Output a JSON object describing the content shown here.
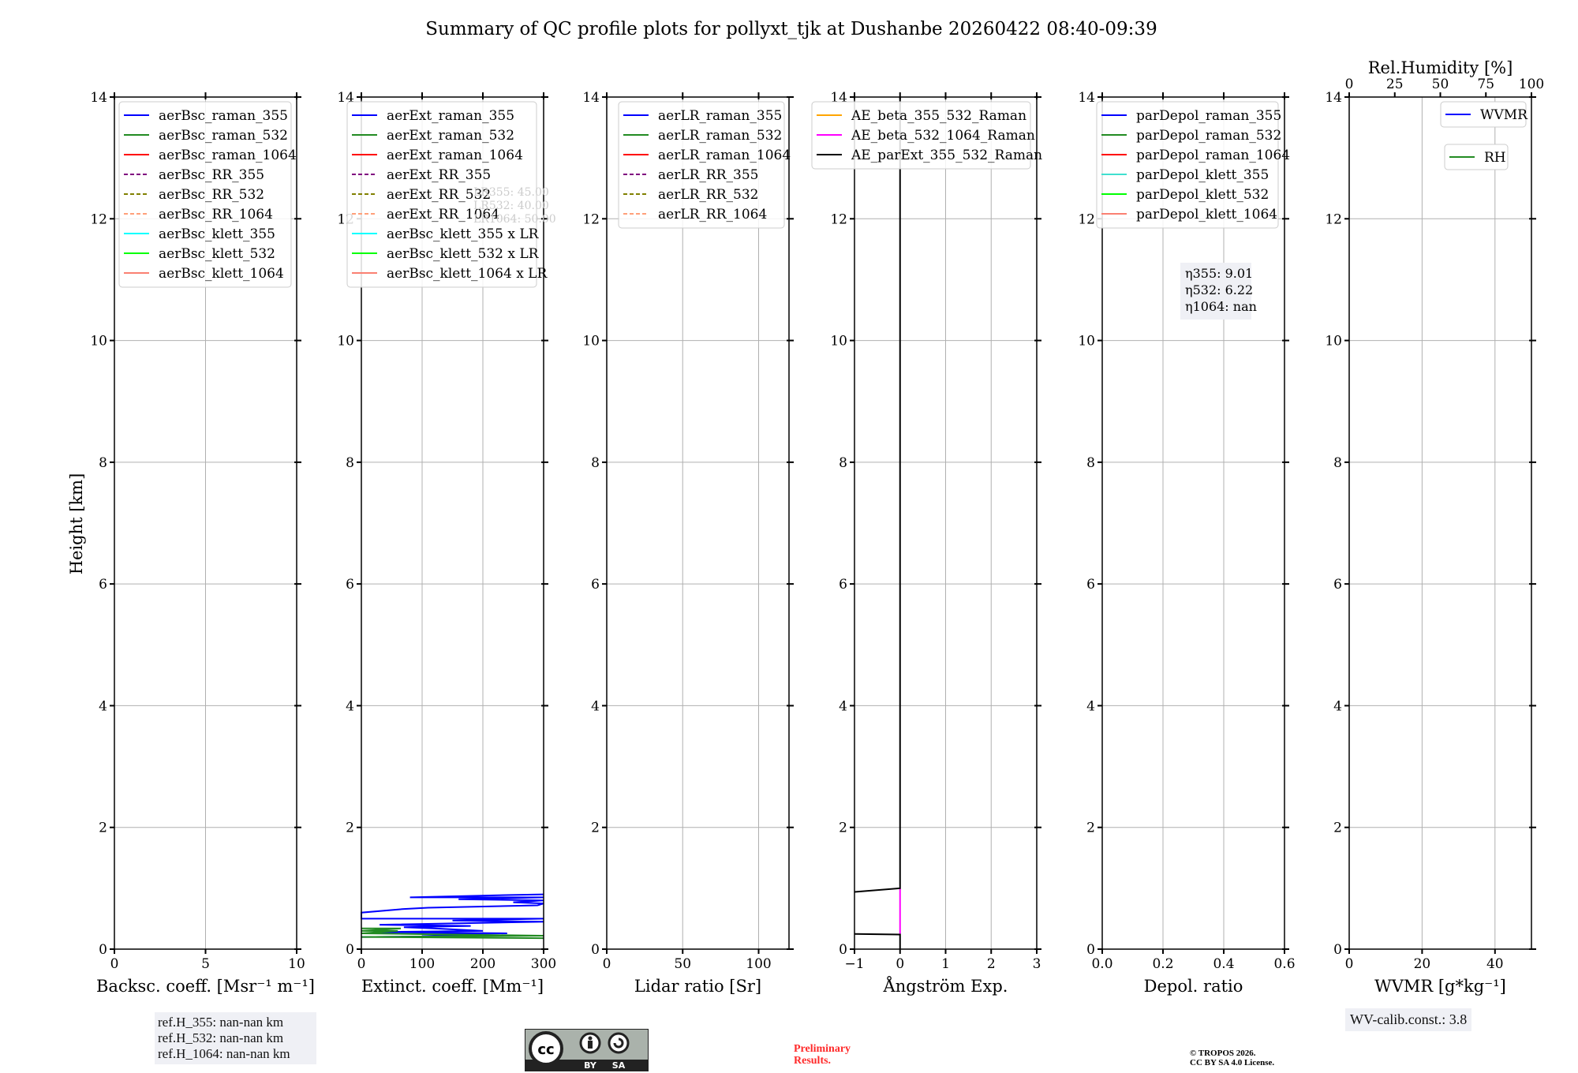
{
  "title": "Summary of QC profile plots for pollyxt_tjk at Dushanbe 20260422 08:40-09:39",
  "ylabel": "Height [km]",
  "chart_data": [
    {
      "type": "line",
      "name": "backscatter",
      "xlabel": "Backsc. coeff. [Msr⁻¹ m⁻¹]",
      "xlim": [
        0,
        10
      ],
      "xticks": [
        0,
        5,
        10
      ],
      "xtick_labels": [
        "0",
        "5",
        "10"
      ],
      "ylim": [
        0,
        14
      ],
      "yticks": [
        0,
        2,
        4,
        6,
        8,
        10,
        12,
        14
      ],
      "grid": true,
      "legend_position": "top-left",
      "legend": [
        {
          "label": "aerBsc_raman_355",
          "color": "#0000ff",
          "dash": false
        },
        {
          "label": "aerBsc_raman_532",
          "color": "#228b22",
          "dash": false
        },
        {
          "label": "aerBsc_raman_1064",
          "color": "#ff0000",
          "dash": false
        },
        {
          "label": "aerBsc_RR_355",
          "color": "#800080",
          "dash": true
        },
        {
          "label": "aerBsc_RR_532",
          "color": "#808000",
          "dash": true
        },
        {
          "label": "aerBsc_RR_1064",
          "color": "#ffa07a",
          "dash": true
        },
        {
          "label": "aerBsc_klett_355",
          "color": "#00ffff",
          "dash": false
        },
        {
          "label": "aerBsc_klett_532",
          "color": "#00ff00",
          "dash": false
        },
        {
          "label": "aerBsc_klett_1064",
          "color": "#fa8072",
          "dash": false
        }
      ],
      "series": []
    },
    {
      "type": "line",
      "name": "extinction",
      "xlabel": "Extinct. coeff. [Mm⁻¹]",
      "xlim": [
        0,
        300
      ],
      "xticks": [
        0,
        100,
        200,
        300
      ],
      "xtick_labels": [
        "0",
        "100",
        "200",
        "300"
      ],
      "ylim": [
        0,
        14
      ],
      "yticks": [
        0,
        2,
        4,
        6,
        8,
        10,
        12,
        14
      ],
      "grid": true,
      "legend_position": "top-left",
      "legend": [
        {
          "label": "aerExt_raman_355",
          "color": "#0000ff",
          "dash": false
        },
        {
          "label": "aerExt_raman_532",
          "color": "#228b22",
          "dash": false
        },
        {
          "label": "aerExt_raman_1064",
          "color": "#ff0000",
          "dash": false
        },
        {
          "label": "aerExt_RR_355",
          "color": "#800080",
          "dash": true
        },
        {
          "label": "aerExt_RR_532",
          "color": "#808000",
          "dash": true
        },
        {
          "label": "aerExt_RR_1064",
          "color": "#ffa07a",
          "dash": true
        },
        {
          "label": "aerBsc_klett_355 x LR",
          "color": "#00ffff",
          "dash": false
        },
        {
          "label": "aerBsc_klett_532 x LR",
          "color": "#00ff00",
          "dash": false
        },
        {
          "label": "aerBsc_klett_1064 x LR",
          "color": "#fa8072",
          "dash": false
        }
      ],
      "annotation": [
        "LR355: 45.00",
        "LR532: 40.00",
        "LR1064: 50.00"
      ],
      "series": [
        {
          "name": "aerExt_raman_355",
          "color": "#0000ff",
          "x": [
            300,
            245,
            80,
            300,
            160,
            300,
            250,
            300,
            290,
            110,
            70,
            0,
            0,
            300,
            150,
            300,
            30,
            180,
            70,
            120,
            200,
            20,
            240,
            100,
            190,
            0
          ],
          "y": [
            0.9,
            0.89,
            0.85,
            0.85,
            0.82,
            0.8,
            0.77,
            0.75,
            0.72,
            0.68,
            0.66,
            0.6,
            0.5,
            0.5,
            0.47,
            0.45,
            0.4,
            0.38,
            0.36,
            0.34,
            0.3,
            0.28,
            0.26,
            0.24,
            0.21,
            0.2
          ]
        },
        {
          "name": "aerExt_raman_532",
          "color": "#228b22",
          "x": [
            0,
            65,
            0,
            60,
            0,
            300,
            0,
            300
          ],
          "y": [
            0.34,
            0.34,
            0.3,
            0.3,
            0.26,
            0.22,
            0.2,
            0.18
          ]
        }
      ]
    },
    {
      "type": "line",
      "name": "lidar_ratio",
      "xlabel": "Lidar ratio [Sr]",
      "xlim": [
        0,
        120
      ],
      "xticks": [
        0,
        50,
        100
      ],
      "xtick_labels": [
        "0",
        "50",
        "100"
      ],
      "ylim": [
        0,
        14
      ],
      "yticks": [
        0,
        2,
        4,
        6,
        8,
        10,
        12,
        14
      ],
      "grid": true,
      "legend_position": "top-left",
      "legend": [
        {
          "label": "aerLR_raman_355",
          "color": "#0000ff",
          "dash": false
        },
        {
          "label": "aerLR_raman_532",
          "color": "#228b22",
          "dash": false
        },
        {
          "label": "aerLR_raman_1064",
          "color": "#ff0000",
          "dash": false
        },
        {
          "label": "aerLR_RR_355",
          "color": "#800080",
          "dash": true
        },
        {
          "label": "aerLR_RR_532",
          "color": "#808000",
          "dash": true
        },
        {
          "label": "aerLR_RR_1064",
          "color": "#ffa07a",
          "dash": true
        }
      ],
      "series": []
    },
    {
      "type": "line",
      "name": "angstrom",
      "xlabel": "Ångström Exp.",
      "xlim": [
        -1,
        3
      ],
      "xticks": [
        -1,
        0,
        1,
        2,
        3
      ],
      "xtick_labels": [
        "−1",
        "0",
        "1",
        "2",
        "3"
      ],
      "ylim": [
        0,
        14
      ],
      "yticks": [
        0,
        2,
        4,
        6,
        8,
        10,
        12,
        14
      ],
      "grid": true,
      "legend_position": "top-left",
      "legend": [
        {
          "label": "AE_beta_355_532_Raman",
          "color": "#ffa500",
          "dash": false
        },
        {
          "label": "AE_beta_532_1064_Raman",
          "color": "#ff00ff",
          "dash": false
        },
        {
          "label": "AE_parExt_355_532_Raman",
          "color": "#000000",
          "dash": false
        }
      ],
      "series": [
        {
          "name": "AE_beta_532_1064_Raman",
          "color": "#ff00ff",
          "x": [
            0,
            0
          ],
          "y": [
            0.24,
            1.0
          ]
        },
        {
          "name": "AE_parExt_355_532_Raman",
          "color": "#000000",
          "x": [
            0,
            0,
            -1
          ],
          "y": [
            14,
            1.0,
            0.94
          ]
        },
        {
          "name": "AE_parExt_355_532_Raman_low",
          "color": "#000000",
          "x": [
            -1,
            0,
            0
          ],
          "y": [
            0.25,
            0.24,
            0
          ]
        }
      ]
    },
    {
      "type": "line",
      "name": "depol",
      "xlabel": "Depol. ratio",
      "xlim": [
        0,
        0.6
      ],
      "xticks": [
        0,
        0.2,
        0.4,
        0.6
      ],
      "xtick_labels": [
        "0.0",
        "0.2",
        "0.4",
        "0.6"
      ],
      "ylim": [
        0,
        14
      ],
      "yticks": [
        0,
        2,
        4,
        6,
        8,
        10,
        12,
        14
      ],
      "grid": true,
      "legend_position": "top-left",
      "legend": [
        {
          "label": "parDepol_raman_355",
          "color": "#0000ff",
          "dash": false
        },
        {
          "label": "parDepol_raman_532",
          "color": "#228b22",
          "dash": false
        },
        {
          "label": "parDepol_raman_1064",
          "color": "#ff0000",
          "dash": false
        },
        {
          "label": "parDepol_klett_355",
          "color": "#40e0d0",
          "dash": false
        },
        {
          "label": "parDepol_klett_532",
          "color": "#00ff00",
          "dash": false
        },
        {
          "label": "parDepol_klett_1064",
          "color": "#fa8072",
          "dash": false
        }
      ],
      "annotation": [
        "η355: 9.01",
        "η532: 6.22",
        "η1064: nan"
      ],
      "series": []
    },
    {
      "type": "line",
      "name": "wvmr",
      "xlabel": "WVMR [g*kg⁻¹]",
      "xlim": [
        0,
        50
      ],
      "xticks": [
        0,
        20,
        40
      ],
      "xtick_labels": [
        "0",
        "20",
        "40"
      ],
      "ylim": [
        0,
        14
      ],
      "yticks": [
        0,
        2,
        4,
        6,
        8,
        10,
        12,
        14
      ],
      "grid": true,
      "legend_position": "top-right",
      "top_axis": {
        "label": "Rel.Humidity [%]",
        "xlim": [
          0,
          100
        ],
        "xticks": [
          0,
          25,
          50,
          75,
          100
        ]
      },
      "legend": [
        {
          "label": "WVMR",
          "color": "#0000ff",
          "dash": false
        },
        {
          "label": "RH",
          "color": "#228b22",
          "dash": false
        }
      ],
      "series": []
    }
  ],
  "footer": {
    "ref_heights": [
      "ref.H_355: nan-nan km",
      "ref.H_532: nan-nan km",
      "ref.H_1064: nan-nan km"
    ],
    "wv_calib": "WV-calib.const.: 3.8",
    "preliminary": [
      "Preliminary",
      "Results."
    ],
    "copyright": [
      "© TROPOS 2026.",
      "CC BY SA 4.0 License."
    ],
    "license_logo": {
      "cc": "cc",
      "by": "BY",
      "sa": "SA"
    }
  }
}
